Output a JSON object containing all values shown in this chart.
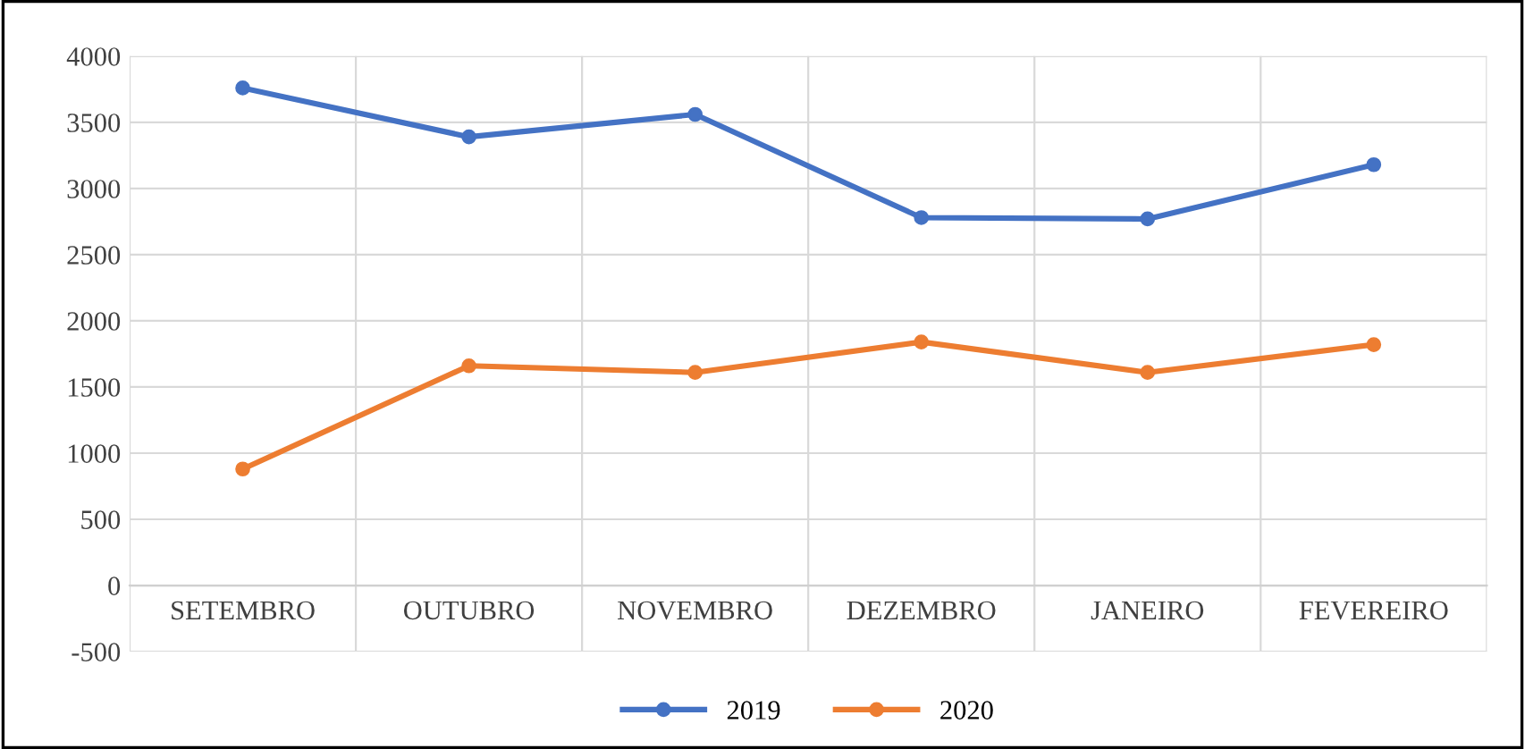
{
  "chart_data": {
    "type": "line",
    "categories": [
      "SETEMBRO",
      "OUTUBRO",
      "NOVEMBRO",
      "DEZEMBRO",
      "JANEIRO",
      "FEVEREIRO"
    ],
    "series": [
      {
        "name": "2019",
        "color": "#4472c4",
        "values": [
          3760,
          3390,
          3560,
          2780,
          2770,
          3180
        ]
      },
      {
        "name": "2020",
        "color": "#ed7d31",
        "values": [
          880,
          1660,
          1610,
          1840,
          1610,
          1820
        ]
      }
    ],
    "ylim": [
      -500,
      4000
    ],
    "yticks": [
      -500,
      0,
      500,
      1000,
      1500,
      2000,
      2500,
      3000,
      3500,
      4000
    ],
    "grid": true,
    "legend": "bottom",
    "marker": "circle",
    "line_style": "solid"
  }
}
